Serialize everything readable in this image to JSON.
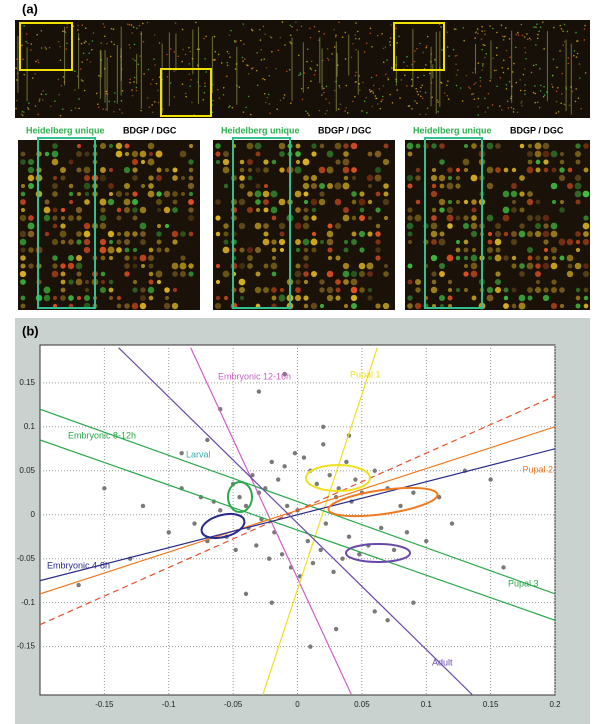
{
  "panel_a": {
    "label": "(a)",
    "zooms": [
      {
        "left": "Heidelberg unique",
        "right": "BDGP / DGC"
      },
      {
        "left": "Heidelberg unique",
        "right": "BDGP / DGC"
      },
      {
        "left": "Heidelberg unique",
        "right": "BDGP / DGC"
      }
    ]
  },
  "chart_data": {
    "type": "scatter",
    "panel_label": "(b)",
    "color": "#7a7a7a",
    "x": [
      -0.12,
      -0.1,
      -0.09,
      -0.08,
      -0.075,
      -0.07,
      -0.065,
      -0.06,
      -0.055,
      -0.05,
      -0.048,
      -0.045,
      -0.04,
      -0.038,
      -0.035,
      -0.032,
      -0.03,
      -0.028,
      -0.025,
      -0.022,
      -0.02,
      -0.018,
      -0.015,
      -0.012,
      -0.01,
      -0.008,
      -0.005,
      -0.002,
      0,
      0.002,
      0.005,
      0.008,
      0.01,
      0.012,
      0.015,
      0.018,
      0.02,
      0.022,
      0.025,
      0.028,
      0.03,
      0.032,
      0.035,
      0.038,
      0.04,
      0.042,
      0.045,
      0.048,
      0.05,
      0.055,
      0.06,
      0.065,
      0.07,
      0.075,
      0.08,
      0.085,
      0.09,
      0.1,
      0.11,
      0.12,
      -0.15,
      -0.17,
      0.15,
      0.16,
      -0.06,
      0.06,
      -0.03,
      0.03,
      -0.02,
      0.02,
      0.04,
      -0.04,
      0.01,
      -0.01,
      0.07,
      -0.07,
      0.09,
      -0.09,
      0.13,
      -0.13
    ],
    "y": [
      0.01,
      -0.02,
      0.03,
      -0.01,
      0.02,
      -0.03,
      0.015,
      0.005,
      -0.025,
      0.035,
      -0.04,
      0.02,
      0.01,
      -0.015,
      0.045,
      -0.035,
      0.025,
      -0.005,
      0.03,
      -0.05,
      0.06,
      -0.02,
      0.04,
      -0.045,
      0.055,
      0.01,
      -0.06,
      0.07,
      0.005,
      -0.07,
      0.065,
      -0.03,
      0.05,
      -0.055,
      0.035,
      -0.04,
      0.08,
      -0.01,
      0.045,
      -0.065,
      0.02,
      0.03,
      -0.05,
      0.06,
      -0.025,
      0.015,
      0.04,
      -0.045,
      0.025,
      -0.035,
      0.05,
      -0.015,
      0.03,
      -0.04,
      0.01,
      -0.02,
      0.025,
      -0.03,
      0.02,
      -0.01,
      0.03,
      -0.08,
      0.04,
      -0.06,
      0.12,
      -0.11,
      0.14,
      -0.13,
      -0.1,
      0.1,
      0.09,
      -0.09,
      -0.15,
      0.16,
      -0.12,
      0.085,
      -0.1,
      0.07,
      0.05,
      -0.05
    ],
    "lines": [
      {
        "name": "Embryonic 12-16h",
        "color": "#cc5fc8",
        "x": [
          -0.083,
          0.042
        ],
        "y": [
          0.19,
          -0.205
        ]
      },
      {
        "name": "Pupal 1",
        "color": "#f0e020",
        "x": [
          -0.027,
          0.062
        ],
        "y": [
          -0.205,
          0.19
        ]
      },
      {
        "name": "Embryonic 8-12h",
        "color": "#2aa84a",
        "x": [
          -0.2,
          0.2
        ],
        "y": [
          0.12,
          -0.09
        ]
      },
      {
        "name": "Pupal 3",
        "color": "#2aa84a",
        "x": [
          -0.2,
          0.2
        ],
        "y": [
          0.085,
          -0.12
        ]
      },
      {
        "name": "Pupal 2",
        "color": "#f07a20",
        "x": [
          -0.2,
          0.2
        ],
        "y": [
          -0.09,
          0.1
        ]
      },
      {
        "color": "#e8502a",
        "dashed": true,
        "x": [
          -0.2,
          0.2
        ],
        "y": [
          -0.125,
          0.135
        ]
      },
      {
        "name": "Embryonic 4-8h",
        "color": "#2a2a8a",
        "x": [
          -0.2,
          0.2
        ],
        "y": [
          -0.075,
          0.075
        ]
      },
      {
        "name": "Adult",
        "color": "#6a4aa8",
        "x": [
          -0.139,
          0.136
        ],
        "y": [
          0.19,
          -0.205
        ]
      }
    ],
    "annotations": [
      {
        "text": "Larval",
        "color": "#3ab0b0"
      }
    ],
    "xlim": [
      -0.2,
      0.2
    ],
    "ylim": [
      -0.205,
      0.193
    ],
    "xticks": [
      -0.15,
      -0.1,
      -0.05,
      0,
      0.05,
      0.1,
      0.15,
      0.2
    ],
    "yticks": [
      -0.15,
      -0.1,
      -0.05,
      0,
      0.05,
      0.1,
      0.15
    ],
    "grid": true
  }
}
